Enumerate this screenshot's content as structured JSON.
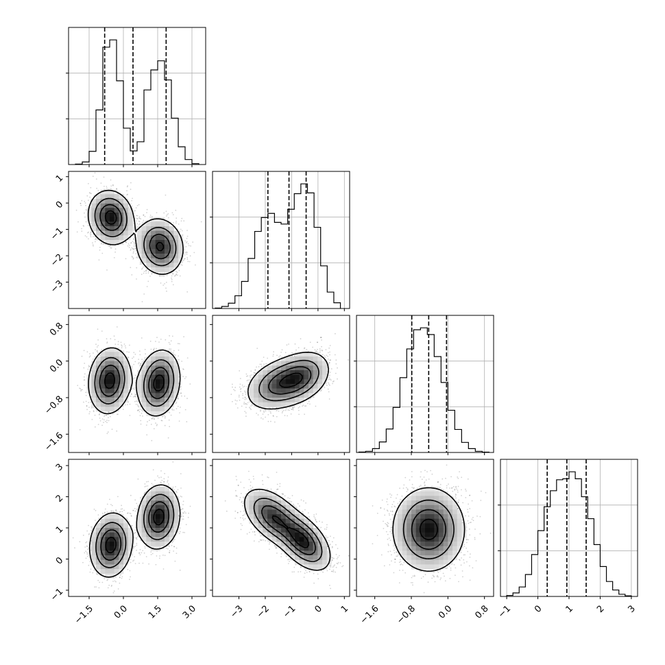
{
  "chart_data": {
    "type": "corner",
    "params": [
      {
        "name": "",
        "range": [
          -2.4,
          3.6
        ],
        "ticks": [
          -1.5,
          0.0,
          1.5,
          3.0
        ],
        "tick_labels": [
          "−1.5",
          "0.0",
          "1.5",
          "3.0"
        ],
        "quantiles": [
          -0.82,
          0.42,
          1.87
        ]
      },
      {
        "name": "",
        "range": [
          -4.0,
          1.2
        ],
        "ticks": [
          -3,
          -2,
          -1,
          0,
          1
        ],
        "tick_labels": [
          "−3",
          "−2",
          "−1",
          "0",
          "1"
        ],
        "quantiles": [
          -1.9,
          -1.1,
          -0.45
        ]
      },
      {
        "name": "",
        "range": [
          -2.0,
          1.0
        ],
        "ticks": [
          -1.6,
          -0.8,
          0.0,
          0.8
        ],
        "tick_labels": [
          "−1.6",
          "−0.8",
          "0.0",
          "0.8"
        ],
        "quantiles": [
          -0.79,
          -0.42,
          -0.03
        ]
      },
      {
        "name": "",
        "range": [
          -1.2,
          3.2
        ],
        "ticks": [
          -1,
          0,
          1,
          2,
          3
        ],
        "tick_labels": [
          "−1",
          "0",
          "1",
          "2",
          "3"
        ],
        "quantiles": [
          0.3,
          0.93,
          1.55
        ]
      }
    ],
    "histograms": [
      {
        "param": 0,
        "bin_edges": [
          -2.1,
          -1.8,
          -1.5,
          -1.2,
          -0.9,
          -0.6,
          -0.3,
          0.0,
          0.3,
          0.6,
          0.9,
          1.2,
          1.5,
          1.8,
          2.1,
          2.4,
          2.7,
          3.0,
          3.3
        ],
        "counts": [
          5,
          28,
          145,
          600,
          1290,
          1370,
          920,
          400,
          150,
          250,
          820,
          1040,
          1140,
          930,
          510,
          195,
          55,
          10
        ]
      },
      {
        "param": 1,
        "bin_edges": [
          -3.9,
          -3.65,
          -3.4,
          -3.15,
          -2.9,
          -2.65,
          -2.4,
          -2.15,
          -1.9,
          -1.65,
          -1.4,
          -1.15,
          -0.9,
          -0.65,
          -0.4,
          -0.15,
          0.1,
          0.35,
          0.6,
          0.85
        ],
        "counts": [
          5,
          25,
          65,
          155,
          330,
          610,
          940,
          1110,
          1160,
          1050,
          1030,
          1210,
          1400,
          1520,
          1410,
          990,
          520,
          200,
          70
        ]
      },
      {
        "param": 2,
        "bin_edges": [
          -1.95,
          -1.8,
          -1.65,
          -1.5,
          -1.35,
          -1.2,
          -1.05,
          -0.9,
          -0.75,
          -0.6,
          -0.45,
          -0.3,
          -0.15,
          0.0,
          0.15,
          0.3,
          0.45,
          0.6,
          0.75,
          0.9
        ],
        "counts": [
          5,
          12,
          40,
          110,
          245,
          470,
          780,
          1080,
          1280,
          1300,
          1230,
          1000,
          730,
          440,
          240,
          105,
          40,
          12,
          4
        ]
      },
      {
        "param": 3,
        "bin_edges": [
          -1.0,
          -0.8,
          -0.6,
          -0.4,
          -0.2,
          0.0,
          0.2,
          0.4,
          0.6,
          0.8,
          1.0,
          1.2,
          1.4,
          1.6,
          1.8,
          2.0,
          2.2,
          2.4,
          2.6,
          2.8,
          3.0
        ],
        "counts": [
          10,
          35,
          95,
          220,
          420,
          660,
          900,
          1060,
          1170,
          1180,
          1250,
          1180,
          1000,
          780,
          520,
          300,
          150,
          65,
          22,
          6
        ]
      }
    ],
    "pairs": [
      {
        "x": 0,
        "y": 1,
        "modes": [
          {
            "cx": -0.55,
            "cy": -0.55,
            "sx": 0.48,
            "sy": 0.5,
            "rho": -0.1,
            "w": 0.5
          },
          {
            "cx": 1.6,
            "cy": -1.65,
            "sx": 0.5,
            "sy": 0.52,
            "rho": -0.1,
            "w": 0.5
          }
        ]
      },
      {
        "x": 0,
        "y": 2,
        "modes": [
          {
            "cx": -0.6,
            "cy": -0.43,
            "sx": 0.45,
            "sy": 0.35,
            "rho": 0.1,
            "w": 0.5
          },
          {
            "cx": 1.55,
            "cy": -0.48,
            "sx": 0.45,
            "sy": 0.35,
            "rho": 0.15,
            "w": 0.5
          }
        ]
      },
      {
        "x": 1,
        "y": 2,
        "modes": [
          {
            "cx": -1.55,
            "cy": -0.52,
            "sx": 0.6,
            "sy": 0.28,
            "rho": 0.3,
            "w": 0.5
          },
          {
            "cx": -0.65,
            "cy": -0.35,
            "sx": 0.55,
            "sy": 0.28,
            "rho": 0.3,
            "w": 0.5
          }
        ]
      },
      {
        "x": 0,
        "y": 3,
        "modes": [
          {
            "cx": -0.55,
            "cy": 0.45,
            "sx": 0.45,
            "sy": 0.5,
            "rho": 0.1,
            "w": 0.5
          },
          {
            "cx": 1.55,
            "cy": 1.35,
            "sx": 0.45,
            "sy": 0.5,
            "rho": 0.1,
            "w": 0.5
          }
        ]
      },
      {
        "x": 1,
        "y": 3,
        "modes": [
          {
            "cx": -1.7,
            "cy": 1.35,
            "sx": 0.55,
            "sy": 0.45,
            "rho": -0.5,
            "w": 0.5
          },
          {
            "cx": -0.55,
            "cy": 0.55,
            "sx": 0.5,
            "sy": 0.45,
            "rho": -0.5,
            "w": 0.5
          }
        ]
      },
      {
        "x": 2,
        "y": 3,
        "modes": [
          {
            "cx": -0.42,
            "cy": 0.95,
            "sx": 0.38,
            "sy": 0.65,
            "rho": 0.0,
            "w": 1.0
          }
        ]
      }
    ],
    "contour_levels": "sigma levels 0.5, 1.0, 1.5, 2.0",
    "grid": true,
    "legend": "none",
    "title": ""
  }
}
